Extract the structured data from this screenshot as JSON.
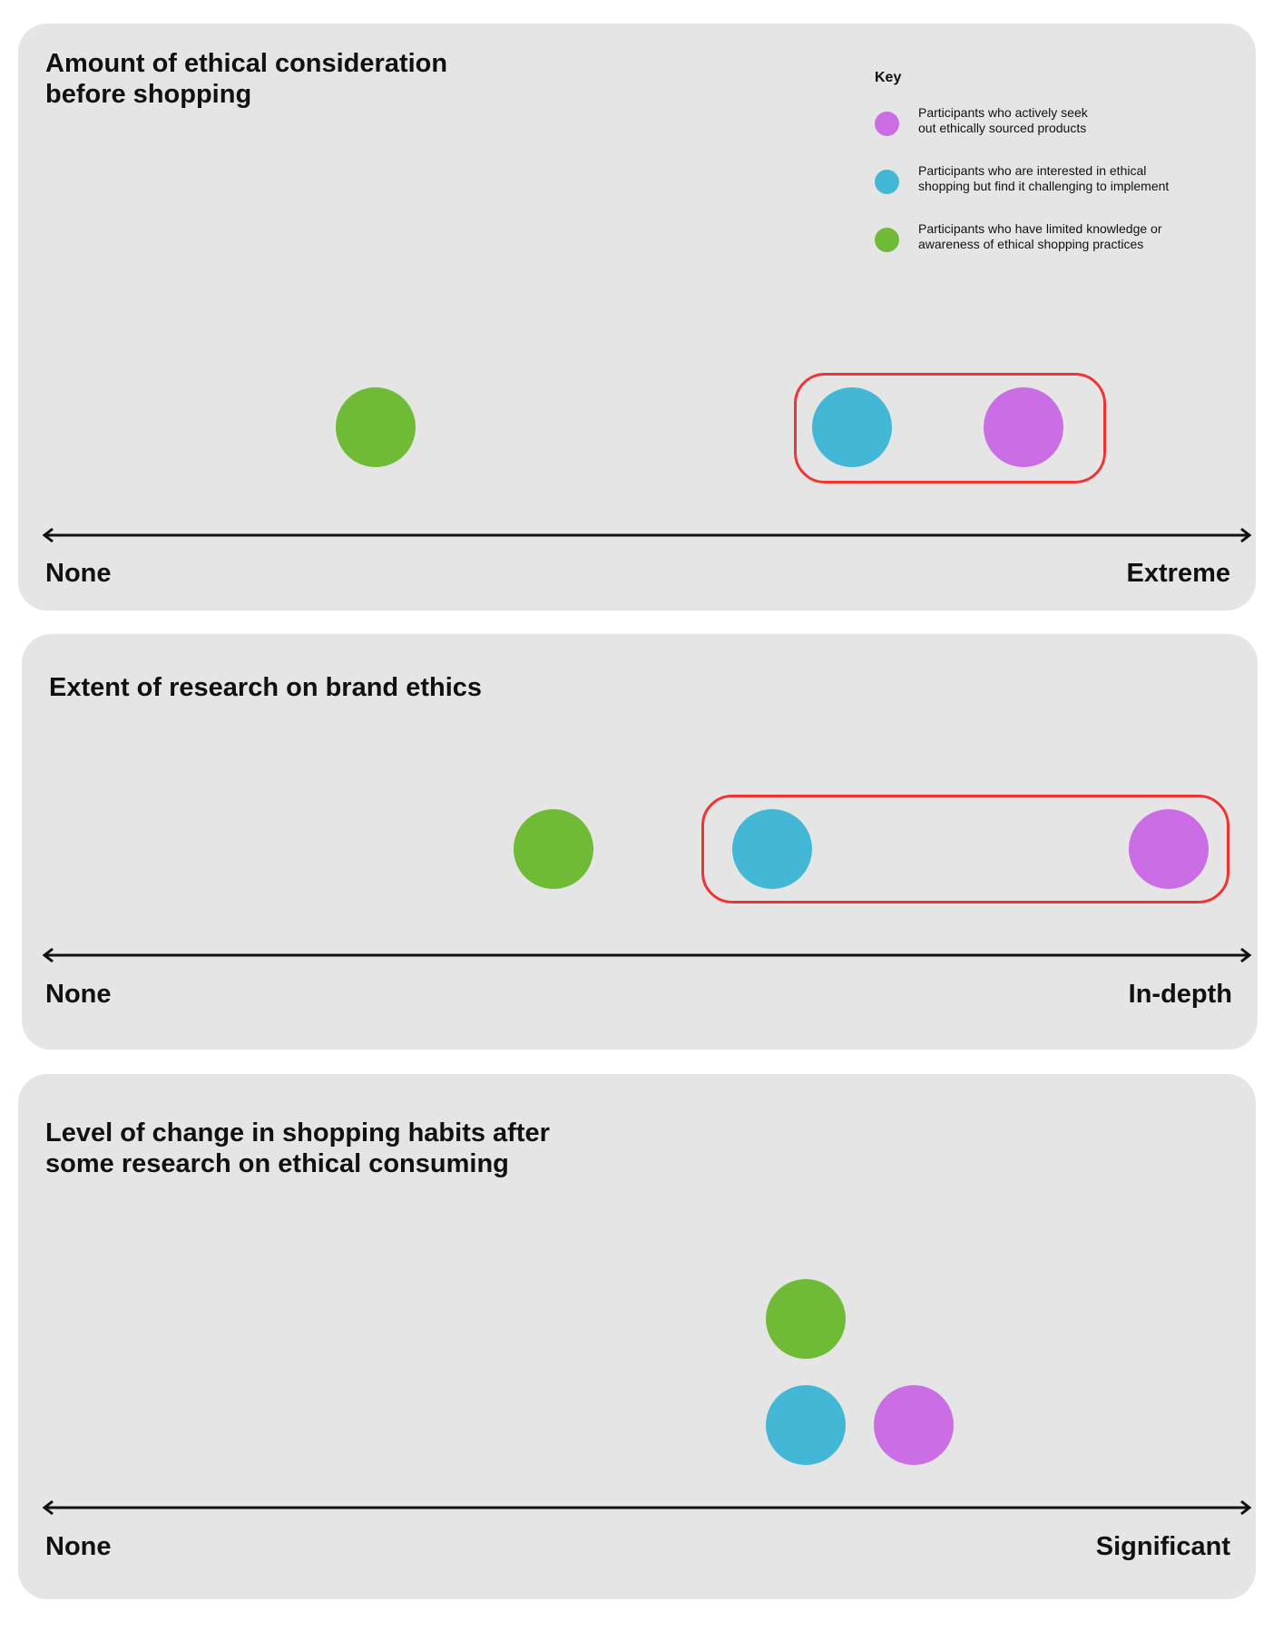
{
  "colors": {
    "panel_background": "#e5e5e6",
    "actively_seek": "#cb6ee6",
    "interested_challenged": "#42b8d6",
    "limited_knowledge": "#6fbb37",
    "highlight_outline": "#ee3535",
    "axis": "#111111"
  },
  "key": {
    "title": "Key",
    "items": [
      {
        "id": "actively_seek",
        "color": "#cb6ee6",
        "label": "Participants who actively seek\nout ethically sourced products"
      },
      {
        "id": "interested_challenged",
        "color": "#42b8d6",
        "label": "Participants who are interested in ethical\nshopping but find it challenging to implement"
      },
      {
        "id": "limited_knowledge",
        "color": "#6fbb37",
        "label": "Participants who have limited knowledge or\nawareness of ethical shopping practices"
      }
    ]
  },
  "scales": [
    {
      "title": "Amount of ethical consideration\nbefore shopping",
      "axis_min_label": "None",
      "axis_max_label": "Extreme",
      "positions": {
        "limited_knowledge": 0.28,
        "interested_challenged": 0.68,
        "actively_seek": 0.825
      },
      "highlighted": [
        "interested_challenged",
        "actively_seek"
      ]
    },
    {
      "title": "Extent of research on brand ethics",
      "axis_min_label": "None",
      "axis_max_label": "In-depth",
      "positions": {
        "limited_knowledge": 0.43,
        "interested_challenged": 0.615,
        "actively_seek": 0.95
      },
      "highlighted": [
        "interested_challenged",
        "actively_seek"
      ]
    },
    {
      "title": "Level of change in shopping habits after\nsome research on ethical consuming",
      "axis_min_label": "None",
      "axis_max_label": "Significant",
      "positions": {
        "limited_knowledge": 0.64,
        "interested_challenged": 0.64,
        "actively_seek": 0.73
      },
      "highlighted": []
    }
  ]
}
